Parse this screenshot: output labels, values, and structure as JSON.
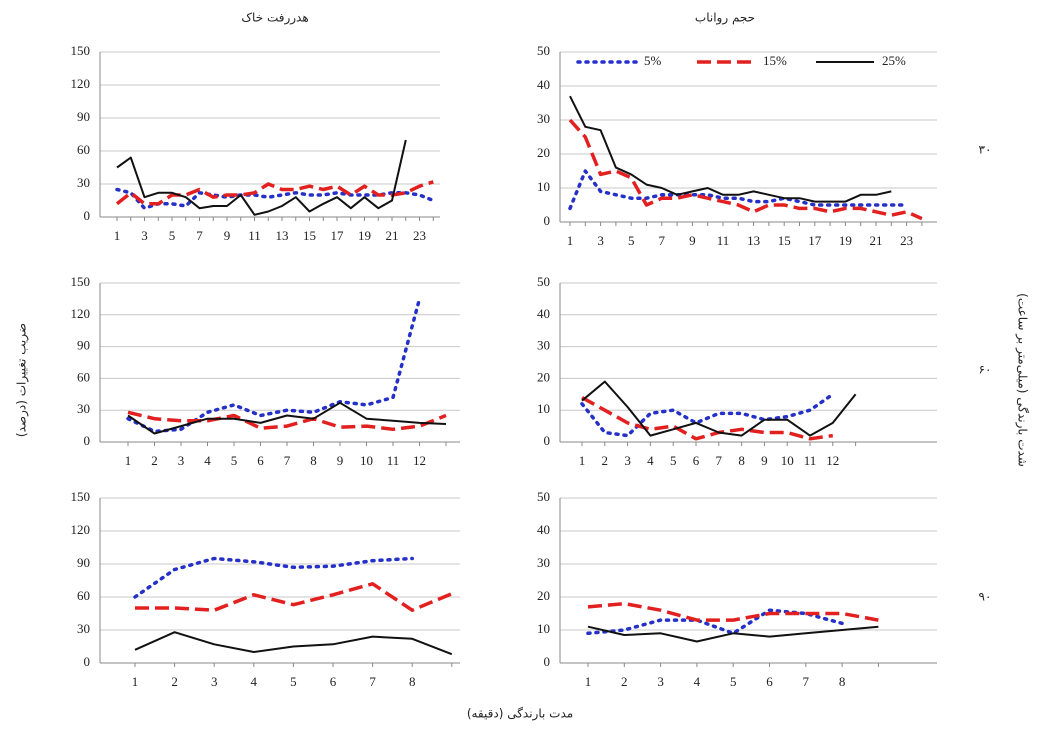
{
  "figure": {
    "column_titles": [
      "هدررفت خاک",
      "حجم رواناب"
    ],
    "row_labels": [
      "۳۰",
      "۶۰",
      "۹۰"
    ],
    "y_label": "ضریب تغییرات (درصد)",
    "right_label": "شدت بارندگی (میلی‌متر بر ساعت)",
    "x_label": "مدت بارندگی (دقیقه)"
  },
  "chart_data": [
    {
      "type": "line",
      "categories": [
        "1",
        null,
        "3",
        null,
        "5",
        null,
        "7",
        null,
        "9",
        null,
        "11",
        null,
        "13",
        null,
        "15",
        null,
        "17",
        null,
        "19",
        null,
        "21",
        null,
        "23",
        null
      ],
      "ylim": [
        0,
        150
      ],
      "yticks": [
        0,
        30,
        60,
        90,
        120,
        150
      ],
      "grid": true,
      "series": [
        {
          "color": "#2430c8",
          "style": "dotted",
          "values": [
            25,
            22,
            8,
            12,
            12,
            10,
            22,
            20,
            18,
            20,
            20,
            18,
            20,
            22,
            20,
            20,
            22,
            20,
            20,
            20,
            22,
            22,
            20,
            15
          ]
        },
        {
          "color": "#e32020",
          "style": "dashed",
          "values": [
            12,
            22,
            12,
            12,
            20,
            20,
            25,
            18,
            20,
            20,
            22,
            30,
            25,
            25,
            28,
            25,
            28,
            20,
            28,
            20,
            20,
            22,
            28,
            32
          ]
        },
        {
          "color": "#111111",
          "style": "solid",
          "values": [
            45,
            54,
            18,
            22,
            22,
            18,
            8,
            10,
            10,
            20,
            2,
            5,
            10,
            18,
            5,
            12,
            18,
            8,
            18,
            8,
            15,
            70,
            null,
            null
          ]
        }
      ]
    },
    {
      "type": "line",
      "categories": [
        "1",
        null,
        "3",
        null,
        "5",
        null,
        "7",
        null,
        "9",
        null,
        "11",
        null,
        "13",
        null,
        "15",
        null,
        "17",
        null,
        "19",
        null,
        "21",
        null,
        "23",
        null
      ],
      "ylim": [
        0,
        50
      ],
      "yticks": [
        0,
        10,
        20,
        30,
        40,
        50
      ],
      "grid": true,
      "legend": "top",
      "series": [
        {
          "name": "5%",
          "color": "#2430c8",
          "style": "dotted",
          "values": [
            4,
            15,
            9,
            8,
            7,
            7,
            8,
            8,
            8,
            8,
            7,
            7,
            6,
            6,
            7,
            6,
            5,
            5,
            5,
            5,
            5,
            5,
            5,
            null
          ]
        },
        {
          "name": "15%",
          "color": "#e32020",
          "style": "dashed",
          "values": [
            30,
            25,
            14,
            15,
            13,
            5,
            7,
            7,
            8,
            7,
            6,
            5,
            3,
            5,
            5,
            4,
            4,
            3,
            4,
            4,
            3,
            2,
            3,
            1
          ]
        },
        {
          "name": "25%",
          "color": "#111111",
          "style": "solid",
          "values": [
            37,
            28,
            27,
            16,
            14,
            11,
            10,
            8,
            9,
            10,
            8,
            8,
            9,
            8,
            7,
            7,
            6,
            6,
            6,
            8,
            8,
            9,
            null,
            null
          ]
        }
      ]
    },
    {
      "type": "line",
      "categories": [
        "1",
        "2",
        "3",
        "4",
        "5",
        "6",
        "7",
        "8",
        "9",
        "10",
        "11",
        "12",
        null
      ],
      "ylim": [
        0,
        150
      ],
      "yticks": [
        0,
        30,
        60,
        90,
        120,
        150
      ],
      "grid": true,
      "series": [
        {
          "color": "#2430c8",
          "style": "dotted",
          "values": [
            22,
            10,
            12,
            28,
            35,
            25,
            30,
            28,
            38,
            35,
            42,
            135,
            null
          ]
        },
        {
          "color": "#e32020",
          "style": "dashed",
          "values": [
            28,
            22,
            20,
            20,
            25,
            13,
            15,
            22,
            14,
            15,
            12,
            15,
            25
          ]
        },
        {
          "color": "#111111",
          "style": "solid",
          "values": [
            25,
            8,
            15,
            22,
            22,
            18,
            25,
            22,
            37,
            22,
            20,
            18,
            17
          ]
        }
      ]
    },
    {
      "type": "line",
      "categories": [
        "1",
        "2",
        "3",
        "4",
        "5",
        "6",
        "7",
        "8",
        "9",
        "10",
        "11",
        "12",
        null
      ],
      "ylim": [
        0,
        50
      ],
      "yticks": [
        0,
        10,
        20,
        30,
        40,
        50
      ],
      "grid": true,
      "series": [
        {
          "color": "#2430c8",
          "style": "dotted",
          "values": [
            12,
            3,
            2,
            9,
            10,
            6,
            9,
            9,
            7,
            8,
            10,
            15,
            null
          ]
        },
        {
          "color": "#e32020",
          "style": "dashed",
          "values": [
            14,
            10,
            6,
            4,
            5,
            1,
            3,
            4,
            3,
            3,
            1,
            2,
            null
          ]
        },
        {
          "color": "#111111",
          "style": "solid",
          "values": [
            13,
            19,
            11,
            2,
            4,
            6,
            3,
            2,
            7,
            7,
            2,
            6,
            15
          ]
        }
      ]
    },
    {
      "type": "line",
      "categories": [
        "1",
        "2",
        "3",
        "4",
        "5",
        "6",
        "7",
        "8",
        null
      ],
      "ylim": [
        0,
        150
      ],
      "yticks": [
        0,
        30,
        60,
        90,
        120,
        150
      ],
      "grid": true,
      "series": [
        {
          "color": "#2430c8",
          "style": "dotted",
          "values": [
            60,
            85,
            95,
            92,
            87,
            88,
            93,
            95,
            null
          ]
        },
        {
          "color": "#e32020",
          "style": "dashed",
          "values": [
            50,
            50,
            48,
            62,
            53,
            62,
            72,
            48,
            63
          ]
        },
        {
          "color": "#111111",
          "style": "solid",
          "values": [
            12,
            28,
            17,
            10,
            15,
            17,
            24,
            22,
            8
          ]
        }
      ]
    },
    {
      "type": "line",
      "categories": [
        "1",
        "2",
        "3",
        "4",
        "5",
        "6",
        "7",
        "8",
        null
      ],
      "ylim": [
        0,
        50
      ],
      "yticks": [
        0,
        10,
        20,
        30,
        40,
        50
      ],
      "grid": true,
      "series": [
        {
          "color": "#2430c8",
          "style": "dotted",
          "values": [
            9,
            10,
            13,
            13,
            9,
            16,
            15,
            12,
            null
          ]
        },
        {
          "color": "#e32020",
          "style": "dashed",
          "values": [
            17,
            18,
            16,
            13,
            13,
            15,
            15,
            15,
            13
          ]
        },
        {
          "color": "#111111",
          "style": "solid",
          "values": [
            11,
            8.5,
            9,
            6.5,
            9,
            8,
            9,
            10,
            11
          ]
        }
      ]
    }
  ]
}
